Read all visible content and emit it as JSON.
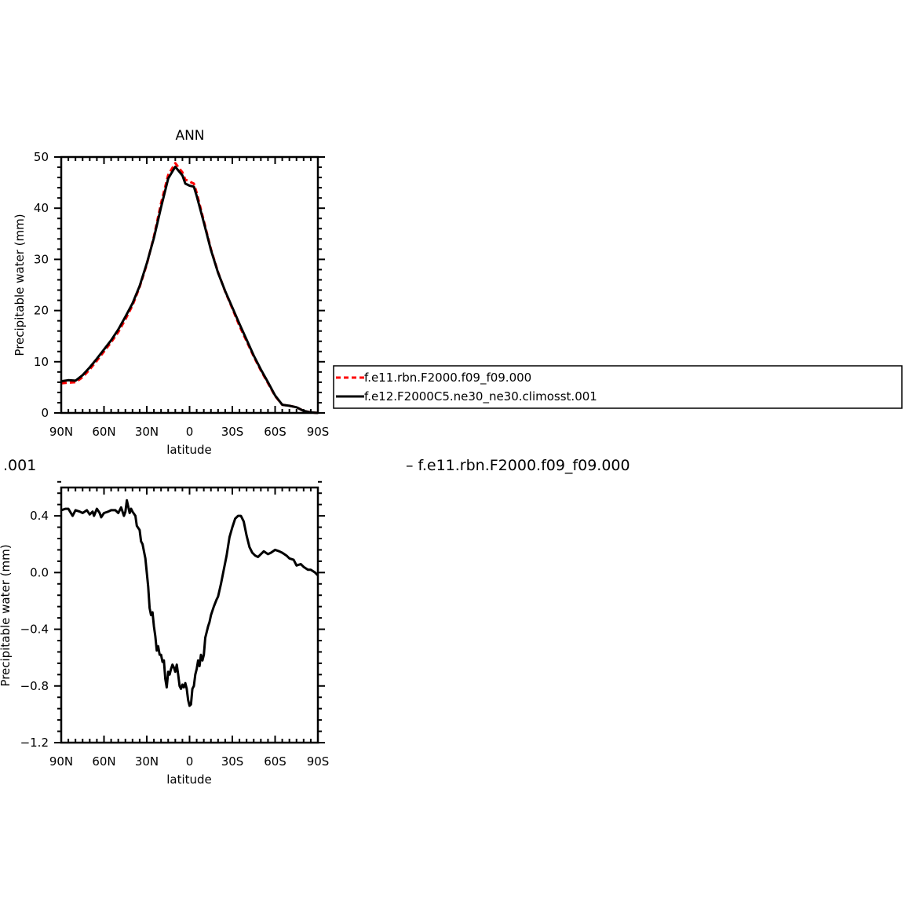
{
  "chart_data": [
    {
      "type": "line",
      "title": "ANN",
      "xlabel": "latitude",
      "ylabel": "Precipitable water (mm)",
      "xlim": [
        90,
        -90
      ],
      "ylim": [
        0,
        50
      ],
      "x_ticks": [
        {
          "value": 90,
          "label": "90N"
        },
        {
          "value": 60,
          "label": "60N"
        },
        {
          "value": 30,
          "label": "30N"
        },
        {
          "value": 0,
          "label": "0"
        },
        {
          "value": -30,
          "label": "30S"
        },
        {
          "value": -60,
          "label": "60S"
        },
        {
          "value": -90,
          "label": "90S"
        }
      ],
      "y_ticks": [
        {
          "value": 0,
          "label": "0"
        },
        {
          "value": 10,
          "label": "10"
        },
        {
          "value": 20,
          "label": "20"
        },
        {
          "value": 30,
          "label": "30"
        },
        {
          "value": 40,
          "label": "40"
        },
        {
          "value": 50,
          "label": "50"
        }
      ],
      "grid": false,
      "legend_position": "right",
      "series": [
        {
          "name": "f.e11.rbn.F2000.f09_f09.000",
          "color": "#ff0000",
          "dash": "dashed",
          "x": [
            90,
            85,
            80,
            75,
            70,
            65,
            60,
            55,
            50,
            45,
            40,
            35,
            30,
            25,
            20,
            15,
            10,
            5,
            3,
            0,
            -3,
            -5,
            -10,
            -15,
            -20,
            -25,
            -30,
            -35,
            -40,
            -45,
            -50,
            -55,
            -60,
            -65,
            -70,
            -75,
            -80,
            -85,
            -90
          ],
          "y": [
            5.8,
            5.9,
            6.0,
            7.0,
            8.5,
            10.2,
            12.0,
            13.8,
            15.8,
            18.3,
            21.0,
            24.6,
            29.0,
            34.5,
            41.0,
            46.5,
            48.8,
            47.0,
            45.6,
            45.2,
            44.8,
            43.0,
            37.5,
            32.0,
            27.5,
            23.7,
            20.4,
            17.0,
            14.0,
            11.0,
            8.3,
            5.8,
            3.3,
            1.6,
            1.4,
            1.1,
            0.4,
            0.1,
            0.0
          ]
        },
        {
          "name": "f.e12.F2000C5.ne30_ne30.climosst.001",
          "color": "#000000",
          "dash": "solid",
          "x": [
            90,
            85,
            80,
            75,
            70,
            65,
            60,
            55,
            50,
            45,
            40,
            35,
            30,
            25,
            20,
            15,
            10,
            5,
            3,
            0,
            -3,
            -5,
            -10,
            -15,
            -20,
            -25,
            -30,
            -35,
            -40,
            -45,
            -50,
            -55,
            -60,
            -65,
            -70,
            -75,
            -80,
            -85,
            -90
          ],
          "y": [
            6.2,
            6.4,
            6.3,
            7.4,
            8.9,
            10.6,
            12.4,
            14.2,
            16.3,
            18.8,
            21.4,
            24.8,
            29.2,
            34.2,
            40.2,
            45.8,
            48.1,
            46.4,
            44.8,
            44.4,
            44.2,
            42.4,
            37.2,
            31.8,
            27.4,
            23.8,
            20.6,
            17.4,
            14.3,
            11.2,
            8.5,
            6.0,
            3.4,
            1.6,
            1.4,
            1.1,
            0.4,
            0.1,
            0.0
          ]
        }
      ]
    },
    {
      "type": "line",
      "title_fragment": ".001",
      "title_right_fragment": "– f.e11.rbn.F2000.f09_f09.000",
      "xlabel": "latitude",
      "ylabel_fragment": "Precipitable water (mm)",
      "xlim": [
        90,
        -90
      ],
      "ylim": [
        -1.2,
        0.6
      ],
      "x_ticks": [
        {
          "value": 90,
          "label": "90N"
        },
        {
          "value": 60,
          "label": "60N"
        },
        {
          "value": 30,
          "label": "30N"
        },
        {
          "value": 0,
          "label": "0"
        },
        {
          "value": -30,
          "label": "30S"
        },
        {
          "value": -60,
          "label": "60S"
        },
        {
          "value": -90,
          "label": "90S"
        }
      ],
      "y_ticks": [
        {
          "value": -1.2,
          "label": "−1.2"
        },
        {
          "value": -0.8,
          "label": "−0.8"
        },
        {
          "value": -0.4,
          "label": "−0.4"
        },
        {
          "value": 0.0,
          "label": "0.0"
        },
        {
          "value": 0.4,
          "label": "0.4"
        }
      ],
      "grid": false,
      "series": [
        {
          "color": "#000000",
          "x": [
            90,
            87,
            85,
            82,
            80,
            77,
            75,
            72,
            70,
            68,
            67,
            65,
            63,
            62,
            60,
            57,
            55,
            52,
            50,
            48,
            46,
            45,
            44,
            42,
            41,
            40,
            38,
            37,
            35,
            34,
            33,
            31,
            30,
            29,
            28,
            27,
            26,
            25,
            24,
            23,
            22,
            21,
            20,
            19,
            18,
            17,
            16,
            15,
            14,
            13,
            12,
            11,
            10,
            9,
            8,
            7,
            6,
            5,
            4,
            3,
            2,
            1,
            0,
            -1,
            -2,
            -3,
            -4,
            -5,
            -6,
            -7,
            -8,
            -9,
            -10,
            -11,
            -12,
            -13,
            -14,
            -15,
            -17,
            -19,
            -20,
            -22,
            -24,
            -26,
            -28,
            -30,
            -32,
            -34,
            -36,
            -38,
            -40,
            -42,
            -44,
            -46,
            -48,
            -50,
            -52,
            -55,
            -57,
            -60,
            -63,
            -65,
            -68,
            -70,
            -73,
            -75,
            -78,
            -80,
            -83,
            -85,
            -88,
            -90
          ],
          "y": [
            0.44,
            0.45,
            0.45,
            0.4,
            0.44,
            0.43,
            0.42,
            0.44,
            0.41,
            0.43,
            0.4,
            0.45,
            0.42,
            0.39,
            0.42,
            0.43,
            0.44,
            0.44,
            0.42,
            0.46,
            0.4,
            0.43,
            0.51,
            0.42,
            0.45,
            0.43,
            0.4,
            0.33,
            0.3,
            0.22,
            0.2,
            0.1,
            0.0,
            -0.1,
            -0.25,
            -0.3,
            -0.28,
            -0.38,
            -0.45,
            -0.55,
            -0.52,
            -0.58,
            -0.58,
            -0.63,
            -0.62,
            -0.75,
            -0.81,
            -0.7,
            -0.72,
            -0.68,
            -0.65,
            -0.67,
            -0.7,
            -0.65,
            -0.72,
            -0.8,
            -0.82,
            -0.79,
            -0.81,
            -0.78,
            -0.82,
            -0.9,
            -0.94,
            -0.93,
            -0.82,
            -0.8,
            -0.72,
            -0.68,
            -0.62,
            -0.66,
            -0.58,
            -0.62,
            -0.58,
            -0.46,
            -0.42,
            -0.38,
            -0.35,
            -0.3,
            -0.24,
            -0.19,
            -0.17,
            -0.08,
            0.02,
            0.12,
            0.25,
            0.32,
            0.38,
            0.4,
            0.4,
            0.36,
            0.26,
            0.18,
            0.14,
            0.12,
            0.11,
            0.13,
            0.15,
            0.13,
            0.14,
            0.16,
            0.15,
            0.14,
            0.12,
            0.1,
            0.09,
            0.05,
            0.06,
            0.04,
            0.02,
            0.02,
            0.0,
            -0.02
          ]
        }
      ]
    }
  ]
}
